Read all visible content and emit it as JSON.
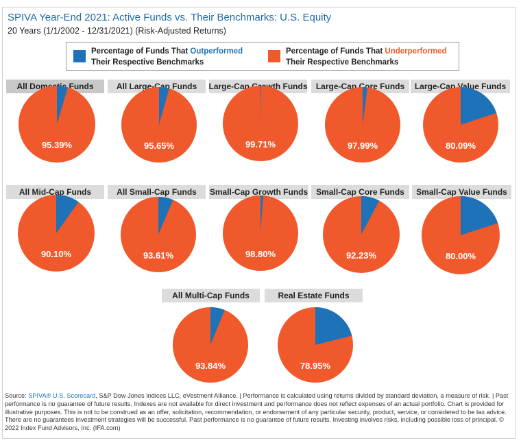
{
  "header": {
    "title": "SPIVA Year-End 2021: Active Funds vs. Their Benchmarks: U.S. Equity",
    "subtitle": "20 Years (1/1/2002 - 12/31/2021) (Risk-Adjusted Returns)"
  },
  "legend": {
    "out_prefix": "Percentage of Funds That ",
    "out_highlight": "Outperformed",
    "out_line2": "Their Respective Benchmarks",
    "under_prefix": "Percentage of Funds That ",
    "under_highlight": "Underperformed",
    "under_line2": "Their Respective Benchmarks"
  },
  "colors": {
    "outperformed": "#1e72b8",
    "underperformed": "#f0592b",
    "title_bg": "#dcdcdc",
    "title_bg_selected": "#c8c8c8"
  },
  "chart_data": {
    "type": "pie",
    "series_names": [
      "Outperformed",
      "Underperformed"
    ],
    "pies": [
      {
        "title": "All Domestic Funds",
        "underperformed": 95.39,
        "label": "95.39%"
      },
      {
        "title": "All Large-Cap Funds",
        "underperformed": 95.65,
        "label": "95.65%"
      },
      {
        "title": "Large-Cap Growth Funds",
        "underperformed": 99.71,
        "label": "99.71%"
      },
      {
        "title": "Large-Cap Core Funds",
        "underperformed": 97.99,
        "label": "97.99%"
      },
      {
        "title": "Large-Cap Value Funds",
        "underperformed": 80.09,
        "label": "80.09%"
      },
      {
        "title": "All Mid-Cap Funds",
        "underperformed": 90.1,
        "label": "90.10%"
      },
      {
        "title": "All Small-Cap Funds",
        "underperformed": 93.61,
        "label": "93.61%"
      },
      {
        "title": "Small-Cap Growth Funds",
        "underperformed": 98.8,
        "label": "98.80%"
      },
      {
        "title": "Small-Cap Core Funds",
        "underperformed": 92.23,
        "label": "92.23%"
      },
      {
        "title": "Small-Cap Value Funds",
        "underperformed": 80.0,
        "label": "80.00%"
      },
      {
        "title": "All Multi-Cap Funds",
        "underperformed": 93.84,
        "label": "93.84%"
      },
      {
        "title": "Real Estate Funds",
        "underperformed": 78.95,
        "label": "78.95%"
      }
    ]
  },
  "footer": {
    "source_prefix": "Source: ",
    "source_link": "SPIVA® U.S. Scorecard",
    "text": ", S&P Dow Jones Indices LLC, eVestment Alliance. | Performance is calculated using returns divided by standard deviation, a measure of risk. | Past performance is no guarantee of future results. Indexes are not available for direct investment and performance does not reflect expenses of an actual portfolio. Chart is provided for illustrative purposes. This is not to be construed as an offer, solicitation, recommendation, or endorsement of any particular security, product, service, or considered to be tax advice. There are no guarantees investment strategies will be successful. Past performance is no guarantee of future results. Investing involves risks, including possible loss of principal. © 2022 Index Fund Advisors, Inc. (IFA.com)"
  }
}
